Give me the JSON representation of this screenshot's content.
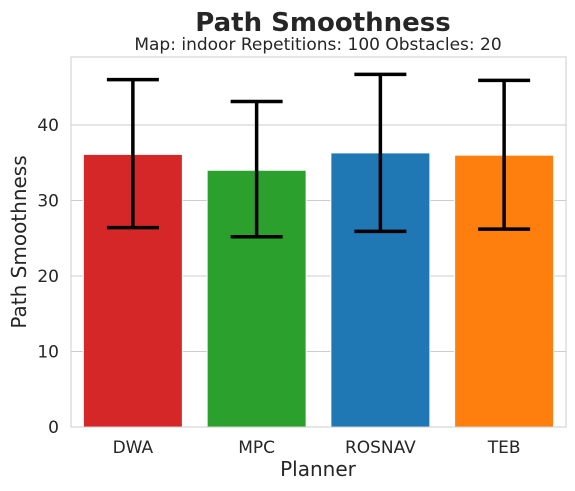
{
  "chart_data": {
    "type": "bar",
    "title": "Path Smoothness",
    "subtitle": "Map: indoor Repetitions: 100 Obstacles: 20",
    "xlabel": "Planner",
    "ylabel": "Path Smoothness",
    "categories": [
      "DWA",
      "MPC",
      "ROSNAV",
      "TEB"
    ],
    "values": [
      36.1,
      34.0,
      36.3,
      36.0
    ],
    "error_low": [
      26.4,
      25.2,
      25.9,
      26.2
    ],
    "error_high": [
      46.0,
      43.1,
      46.7,
      45.9
    ],
    "colors": [
      "#d62728",
      "#2ca02c",
      "#1f77b4",
      "#ff7f0e"
    ],
    "ylim": [
      0,
      49
    ],
    "yticks": [
      0,
      10,
      20,
      30,
      40
    ],
    "grid": true,
    "legend": "none"
  }
}
